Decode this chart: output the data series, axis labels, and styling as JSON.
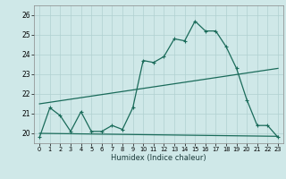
{
  "title": "",
  "xlabel": "Humidex (Indice chaleur)",
  "bg_color": "#cfe8e8",
  "grid_color": "#b0d0d0",
  "line_color": "#1a6b5a",
  "x_ticks": [
    0,
    1,
    2,
    3,
    4,
    5,
    6,
    7,
    8,
    9,
    10,
    11,
    12,
    13,
    14,
    15,
    16,
    17,
    18,
    19,
    20,
    21,
    22,
    23
  ],
  "ylim": [
    19.5,
    26.5
  ],
  "xlim": [
    -0.5,
    23.5
  ],
  "yticks": [
    20,
    21,
    22,
    23,
    24,
    25,
    26
  ],
  "line1_x": [
    0,
    1,
    2,
    3,
    4,
    5,
    6,
    7,
    8,
    9,
    10,
    11,
    12,
    13,
    14,
    15,
    16,
    17,
    18,
    19,
    20,
    21,
    22,
    23
  ],
  "line1_y": [
    19.8,
    21.3,
    20.9,
    20.1,
    21.1,
    20.1,
    20.1,
    20.4,
    20.2,
    21.3,
    23.7,
    23.6,
    23.9,
    24.8,
    24.7,
    25.7,
    25.2,
    25.2,
    24.4,
    23.3,
    21.7,
    20.4,
    20.4,
    19.8
  ],
  "line2_x": [
    0,
    23
  ],
  "line2_y": [
    20.0,
    19.85
  ],
  "line3_x": [
    0,
    23
  ],
  "line3_y": [
    21.5,
    23.3
  ]
}
